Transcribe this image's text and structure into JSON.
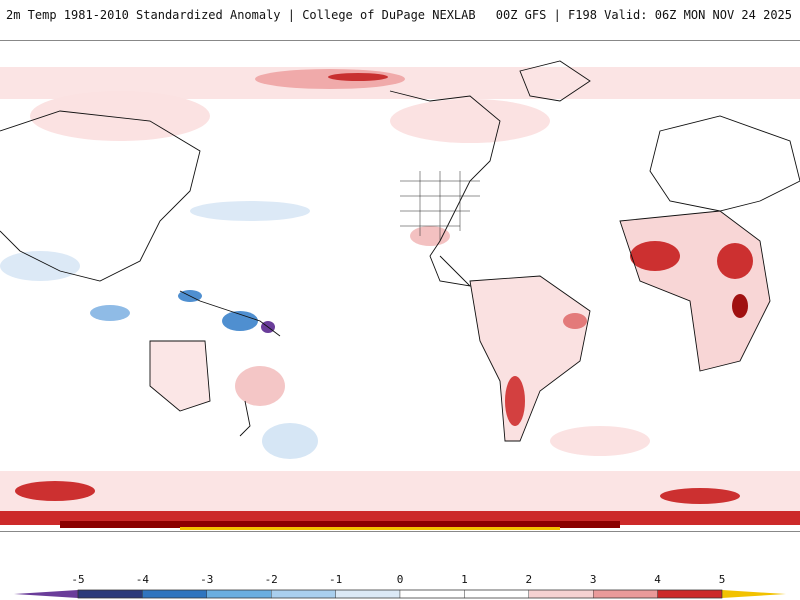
{
  "header": {
    "title": "2m Temp 1981-2010 Standardized Anomaly | College of DuPage NEXLAB",
    "run_info": "00Z GFS | F198 Valid: 06Z MON NOV 24 2025"
  },
  "colorbar": {
    "ticks": [
      "-5",
      "-4",
      "-3",
      "-2",
      "-1",
      "0",
      "1",
      "2",
      "3",
      "4",
      "5"
    ],
    "colors": [
      "#2b3a7a",
      "#2f75bf",
      "#6aaee0",
      "#a9cfee",
      "#dbe9f6",
      "#ffffff",
      "#ffffff",
      "#f6d2d2",
      "#ea9a9a",
      "#cc2a2a",
      "#8b0000",
      "#f2c200"
    ],
    "under_color": "#6a3d9a",
    "over_color": "#f2c200"
  },
  "map": {
    "projection": "global equirectangular, Pacific centered",
    "background": "#ffffff"
  }
}
